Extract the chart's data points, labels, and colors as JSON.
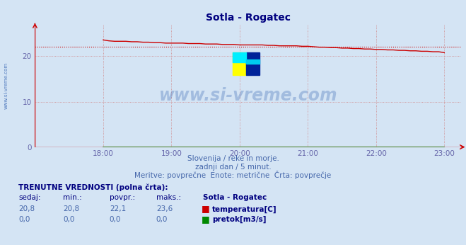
{
  "title": "Sotla - Rogatec",
  "bg_color": "#d4e4f4",
  "plot_bg_color": "#d4e4f4",
  "grid_color": "#d08080",
  "xlim_start": 1020,
  "xlim_end": 1395,
  "ylim": [
    0,
    27.0
  ],
  "xtick_labels": [
    "18:00",
    "19:00",
    "20:00",
    "21:00",
    "22:00",
    "23:00"
  ],
  "xtick_positions": [
    1080,
    1140,
    1200,
    1260,
    1320,
    1380
  ],
  "ytick_positions": [
    0,
    10,
    20
  ],
  "ytick_labels": [
    "0",
    "10",
    "20"
  ],
  "temp_color": "#cc0000",
  "flow_color": "#008800",
  "avg_color": "#cc0000",
  "avg_value": 22.1,
  "subtitle1": "Slovenija / reke in morje.",
  "subtitle2": "zadnji dan / 5 minut.",
  "subtitle3": "Meritve: povprečne  Enote: metrične  Črta: povprečje",
  "footer_title": "TRENUTNE VREDNOSTI (polna črta):",
  "col_sedaj": "sedaj:",
  "col_min": "min.:",
  "col_povpr": "povpr.:",
  "col_maks": "maks.:",
  "col_station": "Sotla - Rogatec",
  "temp_sedaj": "20,8",
  "temp_min": "20,8",
  "temp_povpr": "22,1",
  "temp_maks": "23,6",
  "flow_sedaj": "0,0",
  "flow_min": "0,0",
  "flow_povpr": "0,0",
  "flow_maks": "0,0",
  "label_temp": "temperatura[C]",
  "label_flow": "pretok[m3/s]",
  "watermark": "www.si-vreme.com",
  "watermark_color": "#3060b0",
  "left_label": "www.si-vreme.com",
  "temp_data_x": [
    1080,
    1085,
    1090,
    1095,
    1100,
    1105,
    1110,
    1115,
    1120,
    1125,
    1130,
    1135,
    1140,
    1145,
    1150,
    1155,
    1160,
    1165,
    1170,
    1175,
    1180,
    1185,
    1190,
    1195,
    1200,
    1205,
    1210,
    1215,
    1220,
    1225,
    1230,
    1235,
    1240,
    1245,
    1250,
    1255,
    1260,
    1265,
    1270,
    1275,
    1280,
    1285,
    1290,
    1295,
    1300,
    1305,
    1310,
    1315,
    1320,
    1325,
    1330,
    1335,
    1340,
    1345,
    1350,
    1355,
    1360,
    1365,
    1370,
    1375,
    1380
  ],
  "temp_data_y": [
    23.6,
    23.4,
    23.3,
    23.3,
    23.3,
    23.2,
    23.2,
    23.1,
    23.1,
    23.0,
    23.0,
    22.9,
    22.9,
    22.9,
    22.9,
    22.8,
    22.8,
    22.8,
    22.7,
    22.7,
    22.7,
    22.6,
    22.6,
    22.6,
    22.5,
    22.5,
    22.5,
    22.5,
    22.5,
    22.4,
    22.4,
    22.3,
    22.3,
    22.3,
    22.3,
    22.2,
    22.2,
    22.1,
    22.0,
    22.0,
    21.9,
    21.9,
    21.8,
    21.8,
    21.7,
    21.7,
    21.6,
    21.6,
    21.5,
    21.5,
    21.4,
    21.4,
    21.3,
    21.3,
    21.2,
    21.2,
    21.1,
    21.1,
    21.0,
    21.0,
    20.8
  ],
  "flow_data_y": 0.0,
  "axis_color": "#cc0000",
  "tick_color": "#6666aa",
  "title_color": "#000080",
  "subtitle_color": "#4466aa",
  "footer_color": "#000080"
}
